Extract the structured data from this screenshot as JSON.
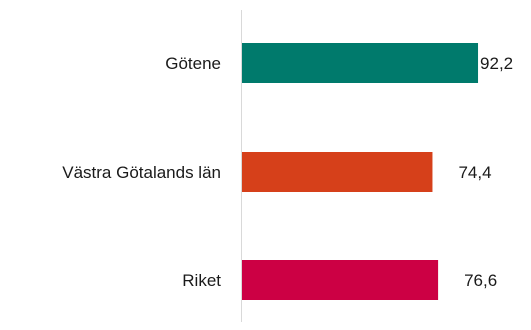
{
  "chart_data": {
    "type": "bar",
    "orientation": "horizontal",
    "categories": [
      "Götene",
      "Västra Götalands län",
      "Riket"
    ],
    "values": [
      92.2,
      74.4,
      76.6
    ],
    "value_labels": [
      "92,2",
      "74,4",
      "76,6"
    ],
    "colors": [
      "#007a6c",
      "#d6401a",
      "#cc0044"
    ],
    "title": "",
    "xlabel": "",
    "ylabel": "",
    "xlim": [
      0,
      100
    ],
    "grid": false,
    "legend": "none"
  }
}
